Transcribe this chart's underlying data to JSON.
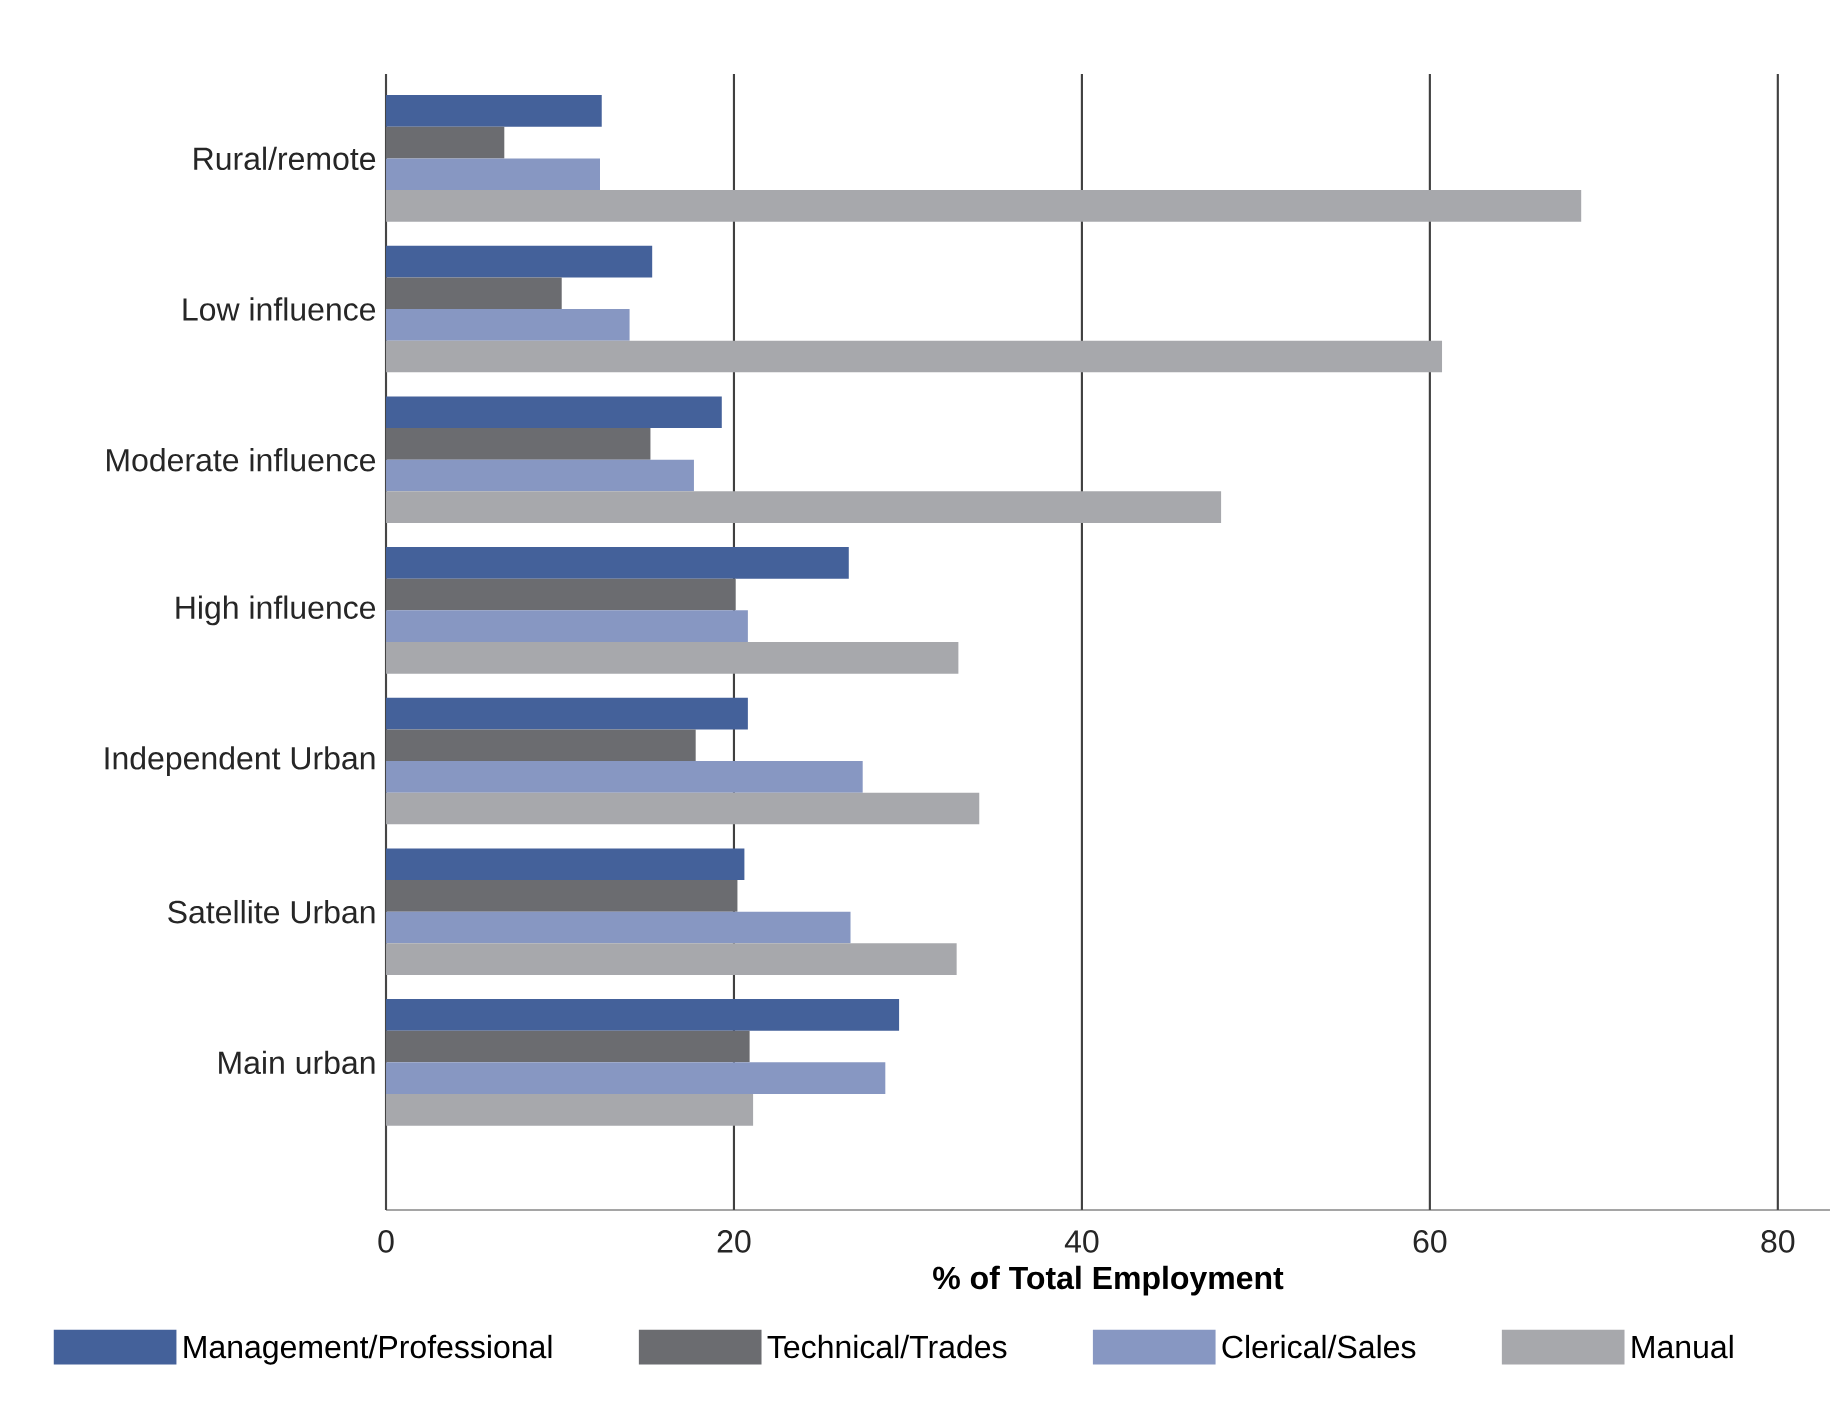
{
  "chart_data": {
    "type": "bar",
    "orientation": "horizontal",
    "xlabel": "% of Total Employment",
    "categories": [
      "Rural/remote",
      "Low influence",
      "Moderate influence",
      "High influence",
      "Independent Urban",
      "Satellite Urban",
      "Main urban"
    ],
    "series": [
      {
        "name": "Management/Professional",
        "color": "#44619a",
        "values": [
          12.4,
          15.3,
          19.3,
          26.6,
          20.8,
          20.6,
          29.5
        ]
      },
      {
        "name": "Technical/Trades",
        "color": "#6b6c70",
        "values": [
          6.8,
          10.1,
          15.2,
          20.1,
          17.8,
          20.2,
          20.9
        ]
      },
      {
        "name": "Clerical/Sales",
        "color": "#8797c2",
        "values": [
          12.3,
          14.0,
          17.7,
          20.8,
          27.4,
          26.7,
          28.7
        ]
      },
      {
        "name": "Manual",
        "color": "#a7a8ac",
        "values": [
          68.7,
          60.7,
          48.0,
          32.9,
          34.1,
          32.8,
          21.1
        ]
      }
    ],
    "xlim": [
      0,
      83
    ],
    "xticks": [
      0,
      20,
      40,
      60,
      80
    ],
    "grid": "x",
    "legend": "bottom"
  }
}
